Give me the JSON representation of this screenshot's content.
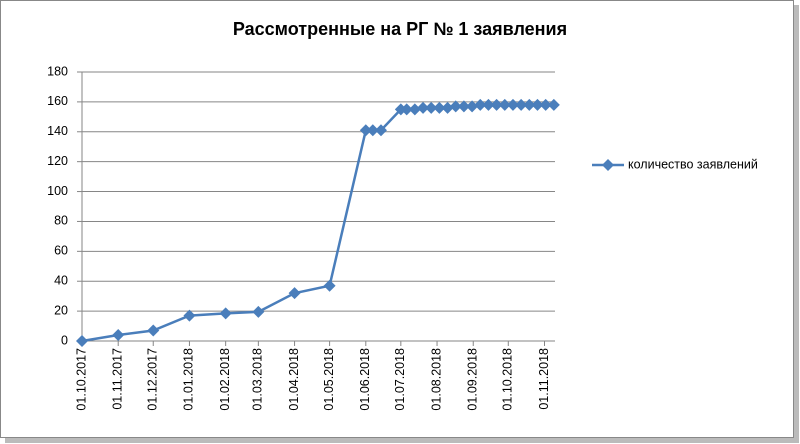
{
  "chart_data": {
    "type": "line",
    "title": "Рассмотренные на РГ № 1 заявления",
    "x": [
      "01.10.2017",
      "01.11.2017",
      "01.12.2017",
      "01.01.2018",
      "01.02.2018",
      "01.03.2018",
      "01.04.2018",
      "01.05.2018",
      "01.06.2018",
      "07.06.2018",
      "14.06.2018",
      "01.07.2018",
      "06.07.2018",
      "13.07.2018",
      "20.07.2018",
      "27.07.2018",
      "03.08.2018",
      "10.08.2018",
      "17.08.2018",
      "24.08.2018",
      "31.08.2018",
      "07.09.2018",
      "14.09.2018",
      "21.09.2018",
      "28.09.2018",
      "05.10.2018",
      "12.10.2018",
      "19.10.2018",
      "26.10.2018",
      "02.11.2018",
      "09.11.2018"
    ],
    "series": [
      {
        "name": "количество заявлений",
        "color": "#4a7ebb",
        "values": [
          0,
          4,
          7,
          17,
          18.5,
          19.5,
          32,
          37,
          141,
          141,
          141,
          155,
          155,
          155,
          156,
          156,
          156,
          156,
          157,
          157,
          157,
          158,
          158,
          158,
          158,
          158,
          158,
          158,
          158,
          158,
          158
        ]
      }
    ],
    "xlim": [
      "01.10.2017",
      "10.11.2018"
    ],
    "xticks": [
      "01.10.2017",
      "01.11.2017",
      "01.12.2017",
      "01.01.2018",
      "01.02.2018",
      "01.03.2018",
      "01.04.2018",
      "01.05.2018",
      "01.06.2018",
      "01.07.2018",
      "01.08.2018",
      "01.09.2018",
      "01.10.2018",
      "01.11.2018"
    ],
    "ylim": [
      0,
      180
    ],
    "yticks": [
      0,
      20,
      40,
      60,
      80,
      100,
      120,
      140,
      160,
      180
    ],
    "grid": true,
    "legend": "right"
  }
}
